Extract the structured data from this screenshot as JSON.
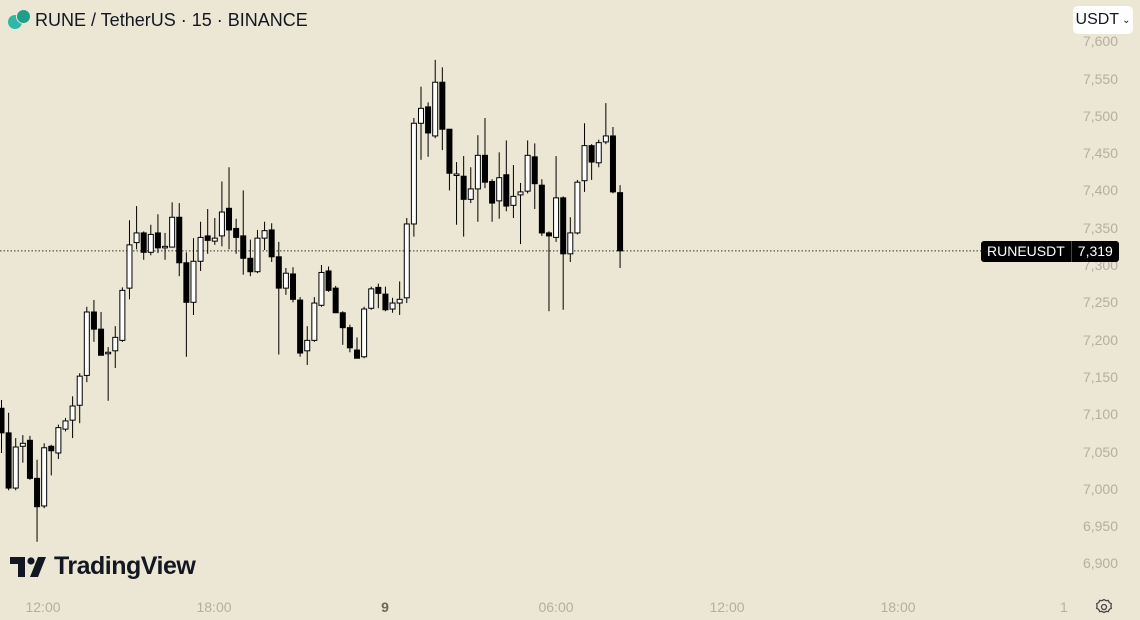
{
  "header": {
    "title": "RUNE / TetherUS · 15 · BINANCE",
    "symbol_icon": "rune-coin-icon"
  },
  "currency_button": {
    "label": "USDT",
    "icon": "chevron-down-icon"
  },
  "price_axis": {
    "labels": [
      "7,600",
      "7,550",
      "7,500",
      "7,450",
      "7,400",
      "7,350",
      "7,300",
      "7,250",
      "7,200",
      "7,150",
      "7,100",
      "7,050",
      "7,000",
      "6,950",
      "6,900"
    ]
  },
  "time_axis": {
    "labels": [
      {
        "text": "12:00",
        "bold": false
      },
      {
        "text": "18:00",
        "bold": false
      },
      {
        "text": "9",
        "bold": true
      },
      {
        "text": "06:00",
        "bold": false
      },
      {
        "text": "12:00",
        "bold": false
      },
      {
        "text": "18:00",
        "bold": false
      }
    ]
  },
  "last_price": {
    "symbol": "RUNEUSDT",
    "value": "7,319",
    "price": 7319
  },
  "scale_button": "1",
  "logo": {
    "text": "TradingView"
  },
  "colors": {
    "background": "#ece6d4",
    "up": "#ffffff",
    "down": "#000000",
    "wick": "#000000"
  },
  "chart_data": {
    "type": "candlestick",
    "interval": "15",
    "ylim": [
      6870,
      7630
    ],
    "ohlc": [
      [
        7108,
        7119,
        7048,
        7075
      ],
      [
        7075,
        7102,
        6998,
        7001
      ],
      [
        7001,
        7068,
        6998,
        7056
      ],
      [
        7057,
        7072,
        7035,
        7061
      ],
      [
        7065,
        7071,
        7012,
        7014
      ],
      [
        7014,
        7039,
        6929,
        6976
      ],
      [
        6977,
        7061,
        6974,
        7055
      ],
      [
        7057,
        7059,
        7018,
        7051
      ],
      [
        7048,
        7086,
        7040,
        7082
      ],
      [
        7080,
        7095,
        7077,
        7091
      ],
      [
        7092,
        7124,
        7068,
        7111
      ],
      [
        7112,
        7155,
        7088,
        7151
      ],
      [
        7152,
        7244,
        7143,
        7237
      ],
      [
        7237,
        7253,
        7197,
        7214
      ],
      [
        7214,
        7237,
        7179,
        7179
      ],
      [
        7181,
        7190,
        7118,
        7183
      ],
      [
        7185,
        7218,
        7162,
        7203
      ],
      [
        7199,
        7270,
        7197,
        7266
      ],
      [
        7269,
        7360,
        7254,
        7327
      ],
      [
        7330,
        7379,
        7321,
        7343
      ],
      [
        7343,
        7345,
        7307,
        7317
      ],
      [
        7317,
        7354,
        7313,
        7341
      ],
      [
        7343,
        7368,
        7316,
        7323
      ],
      [
        7323,
        7343,
        7307,
        7325
      ],
      [
        7324,
        7384,
        7324,
        7364
      ],
      [
        7364,
        7383,
        7285,
        7303
      ],
      [
        7303,
        7317,
        7177,
        7250
      ],
      [
        7250,
        7336,
        7233,
        7305
      ],
      [
        7305,
        7358,
        7292,
        7337
      ],
      [
        7339,
        7375,
        7315,
        7333
      ],
      [
        7332,
        7363,
        7327,
        7336
      ],
      [
        7339,
        7412,
        7325,
        7371
      ],
      [
        7376,
        7431,
        7321,
        7347
      ],
      [
        7349,
        7362,
        7315,
        7337
      ],
      [
        7339,
        7400,
        7287,
        7309
      ],
      [
        7309,
        7334,
        7285,
        7291
      ],
      [
        7291,
        7347,
        7289,
        7336
      ],
      [
        7336,
        7358,
        7320,
        7346
      ],
      [
        7347,
        7356,
        7304,
        7311
      ],
      [
        7311,
        7331,
        7180,
        7269
      ],
      [
        7269,
        7296,
        7260,
        7289
      ],
      [
        7288,
        7297,
        7250,
        7254
      ],
      [
        7253,
        7257,
        7177,
        7182
      ],
      [
        7185,
        7218,
        7166,
        7199
      ],
      [
        7199,
        7257,
        7197,
        7249
      ],
      [
        7246,
        7300,
        7244,
        7290
      ],
      [
        7292,
        7298,
        7264,
        7266
      ],
      [
        7269,
        7272,
        7236,
        7236
      ],
      [
        7236,
        7238,
        7193,
        7216
      ],
      [
        7216,
        7220,
        7183,
        7189
      ],
      [
        7186,
        7203,
        7175,
        7175
      ],
      [
        7177,
        7244,
        7175,
        7241
      ],
      [
        7242,
        7271,
        7240,
        7268
      ],
      [
        7270,
        7275,
        7242,
        7262
      ],
      [
        7261,
        7271,
        7238,
        7240
      ],
      [
        7241,
        7256,
        7236,
        7249
      ],
      [
        7249,
        7278,
        7233,
        7254
      ],
      [
        7256,
        7363,
        7249,
        7355
      ],
      [
        7355,
        7497,
        7338,
        7490
      ],
      [
        7490,
        7539,
        7441,
        7510
      ],
      [
        7512,
        7518,
        7445,
        7477
      ],
      [
        7473,
        7575,
        7470,
        7545
      ],
      [
        7545,
        7565,
        7454,
        7482
      ],
      [
        7482,
        7482,
        7400,
        7423
      ],
      [
        7422,
        7438,
        7354,
        7422
      ],
      [
        7419,
        7446,
        7338,
        7388
      ],
      [
        7388,
        7431,
        7383,
        7402
      ],
      [
        7402,
        7474,
        7358,
        7447
      ],
      [
        7447,
        7497,
        7403,
        7411
      ],
      [
        7412,
        7415,
        7358,
        7383
      ],
      [
        7386,
        7451,
        7362,
        7417
      ],
      [
        7421,
        7467,
        7372,
        7379
      ],
      [
        7380,
        7434,
        7363,
        7392
      ],
      [
        7394,
        7410,
        7328,
        7398
      ],
      [
        7399,
        7467,
        7396,
        7447
      ],
      [
        7445,
        7463,
        7375,
        7409
      ],
      [
        7407,
        7415,
        7339,
        7343
      ],
      [
        7343,
        7345,
        7238,
        7339
      ],
      [
        7337,
        7446,
        7331,
        7390
      ],
      [
        7390,
        7392,
        7240,
        7315
      ],
      [
        7315,
        7364,
        7304,
        7343
      ],
      [
        7343,
        7414,
        7341,
        7411
      ],
      [
        7413,
        7490,
        7398,
        7460
      ],
      [
        7460,
        7462,
        7414,
        7438
      ],
      [
        7437,
        7468,
        7431,
        7464
      ],
      [
        7465,
        7517,
        7462,
        7473
      ],
      [
        7473,
        7485,
        7396,
        7398
      ],
      [
        7397,
        7407,
        7296,
        7319
      ]
    ]
  }
}
